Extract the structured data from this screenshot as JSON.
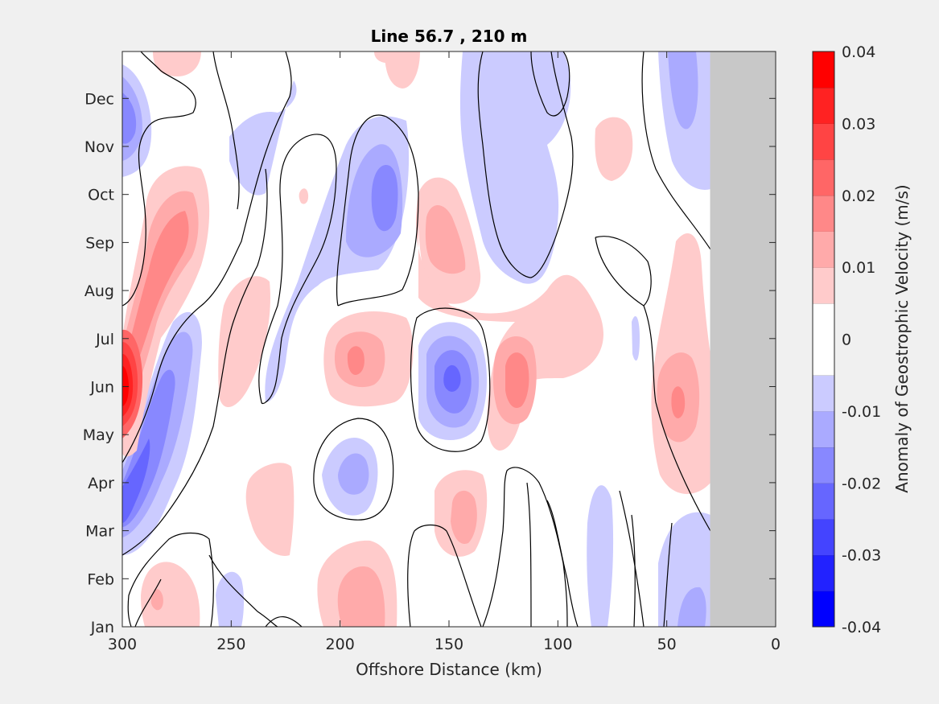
{
  "chart_data": {
    "type": "heatmap",
    "subtype": "filled-contour",
    "title": "Line 56.7 , 210 m",
    "xlabel": "Offshore Distance (km)",
    "ylabel": "",
    "x_reversed": true,
    "xlim": [
      300,
      0
    ],
    "xticks": [
      "300",
      "250",
      "200",
      "150",
      "100",
      "50",
      "0"
    ],
    "yticks": [
      "Jan",
      "Feb",
      "Mar",
      "Apr",
      "May",
      "Jun",
      "Jul",
      "Aug",
      "Sep",
      "Oct",
      "Nov",
      "Dec"
    ],
    "no_data_region_x_km": [
      0,
      30
    ],
    "no_data_color": "#c8c8c8",
    "colorbar": {
      "label": "Anomaly of Geostrophic Velocity (m/s)",
      "range": [
        -0.04,
        0.04
      ],
      "ticks": [
        "-0.04",
        "-0.03",
        "-0.02",
        "-0.01",
        "0",
        "0.01",
        "0.02",
        "0.03",
        "0.04"
      ],
      "levels": 16,
      "colors": [
        "#0000ff",
        "#2222ff",
        "#4444ff",
        "#6666ff",
        "#8888ff",
        "#aaaaff",
        "#cbcbff",
        "#ffffff",
        "#ffffff",
        "#ffcbcb",
        "#ffaaaa",
        "#ff8888",
        "#ff6666",
        "#ff4444",
        "#ff2222",
        "#ff0000"
      ]
    },
    "zero_contour": true,
    "features": [
      {
        "x_km": 298,
        "month": 6.0,
        "value": 0.04
      },
      {
        "x_km": 278,
        "month": 9.0,
        "value": 0.02
      },
      {
        "x_km": 297,
        "month": 3.6,
        "value": -0.025
      },
      {
        "x_km": 297,
        "month": 11.5,
        "value": -0.02
      },
      {
        "x_km": 283,
        "month": 5.5,
        "value": -0.02
      },
      {
        "x_km": 180,
        "month": 10.0,
        "value": -0.02
      },
      {
        "x_km": 148,
        "month": 6.0,
        "value": -0.025
      },
      {
        "x_km": 182,
        "month": 4.1,
        "value": -0.015
      },
      {
        "x_km": 195,
        "month": 6.4,
        "value": 0.015
      },
      {
        "x_km": 118,
        "month": 6.0,
        "value": 0.02
      },
      {
        "x_km": 45,
        "month": 5.7,
        "value": 0.015
      },
      {
        "x_km": 150,
        "month": 3.8,
        "value": 0.01
      },
      {
        "x_km": 185,
        "month": 2.0,
        "value": 0.012
      },
      {
        "x_km": 150,
        "month": 9.0,
        "value": 0.01
      },
      {
        "x_km": 290,
        "month": 1.6,
        "value": 0.01
      }
    ]
  }
}
